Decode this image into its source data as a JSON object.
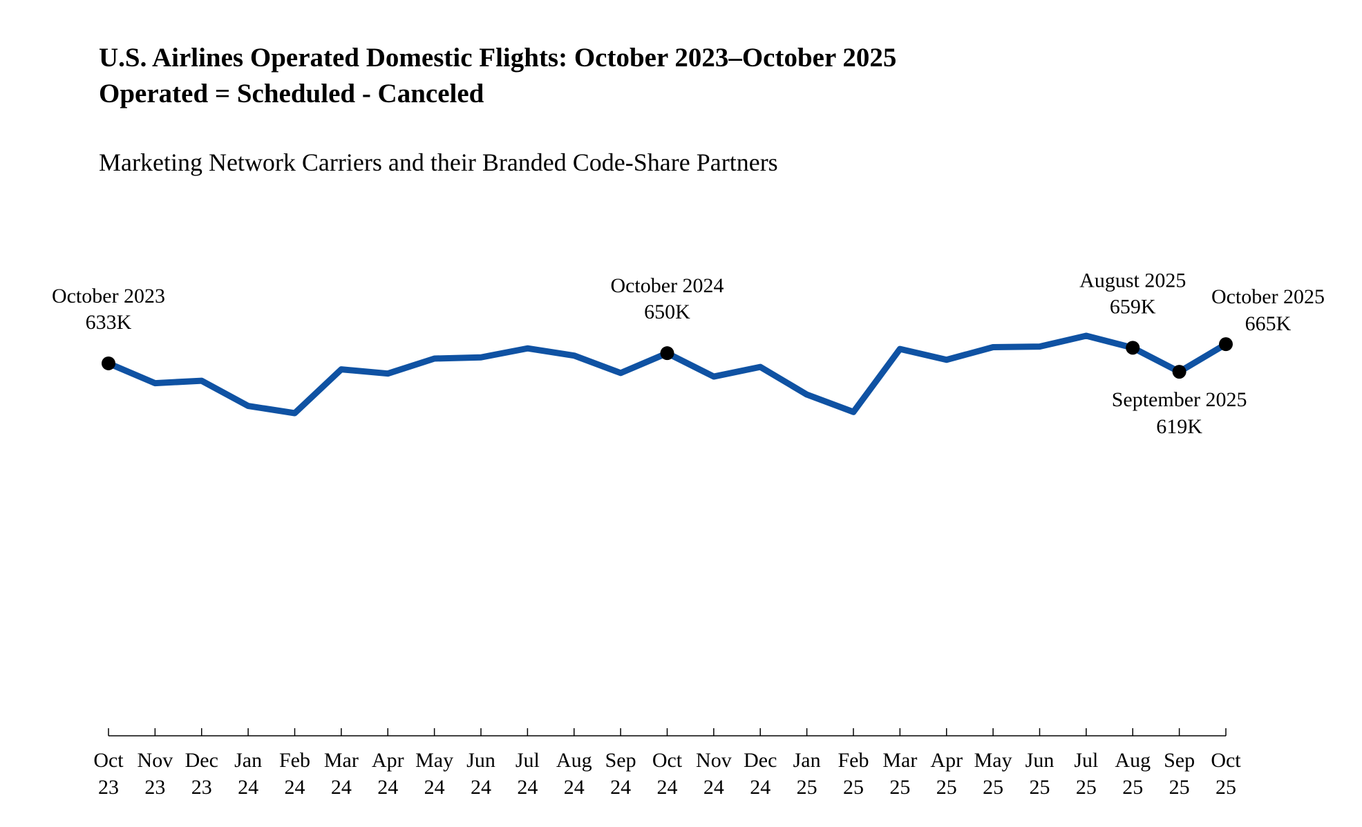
{
  "chart_data": {
    "type": "line",
    "title": "U.S. Airlines Operated Domestic Flights: October 2023–October 2025",
    "subtitle": "Operated = Scheduled - Canceled",
    "caption": "Marketing Network Carriers and their Branded Code-Share Partners",
    "categories": [
      "Oct 23",
      "Nov 23",
      "Dec 23",
      "Jan 24",
      "Feb 24",
      "Mar 24",
      "Apr 24",
      "May 24",
      "Jun 24",
      "Jul 24",
      "Aug 24",
      "Sep 24",
      "Oct 24",
      "Nov 24",
      "Dec 24",
      "Jan 25",
      "Feb 25",
      "Mar 25",
      "Apr 25",
      "May 25",
      "Jun 25",
      "Jul 25",
      "Aug 25",
      "Sep 25",
      "Oct 25"
    ],
    "series": [
      {
        "color": "#0f52a3",
        "values": [
          633,
          600,
          604,
          562,
          550,
          623,
          616,
          641,
          643,
          658,
          646,
          617,
          650,
          611,
          627,
          581,
          552,
          657,
          639,
          660,
          661,
          679,
          659,
          619,
          665
        ],
        "value_labels": [
          "633K",
          null,
          null,
          null,
          null,
          null,
          null,
          null,
          null,
          null,
          null,
          null,
          "650K",
          null,
          null,
          null,
          null,
          null,
          null,
          null,
          null,
          null,
          "659K",
          "619K",
          "665K"
        ],
        "point_labels": [
          "October 2023",
          null,
          null,
          null,
          null,
          null,
          null,
          null,
          null,
          null,
          null,
          null,
          "October 2024",
          null,
          null,
          null,
          null,
          null,
          null,
          null,
          null,
          null,
          "August 2025",
          "September 2025",
          "October 2025"
        ]
      }
    ]
  }
}
